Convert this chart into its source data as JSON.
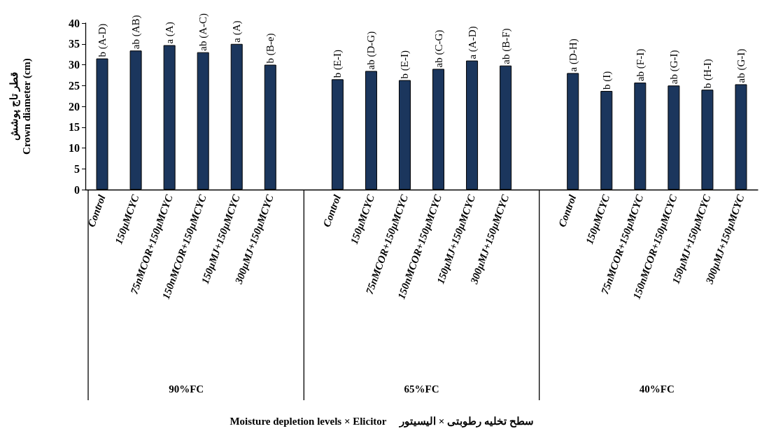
{
  "chart_data": {
    "type": "bar",
    "ylabel": "قطر تاج پوشش\nCrown diameter (cm)",
    "categories": [
      "Control",
      "150µMCYC",
      "75nMCOR+150µMCYC",
      "150nMCOR+150µMCYC",
      "150µMJ+150µMCYC",
      "300µMJ+150µMCYC",
      null,
      "Control",
      "150µMCYC",
      "75nMCOR+150µMCYC",
      "150nMCOR+150µMCYC",
      "150µMJ+150µMCYC",
      "300µMJ+150µMCYC",
      null,
      "Control",
      "150µMCYC",
      "75nMCOR+150µMCYC",
      "150nMCOR+150µMCYC",
      "150µMJ+150µMCYC",
      "300µMJ+150µMCYC"
    ],
    "values": [
      31.5,
      33.4,
      34.7,
      33.0,
      35.0,
      30.0,
      null,
      26.5,
      28.5,
      26.3,
      29.0,
      31.0,
      29.8,
      null,
      28.0,
      23.7,
      25.7,
      25.0,
      24.0,
      25.3
    ],
    "value_labels": [
      "b (A-D)",
      "ab (AB)",
      "a (A)",
      "ab (A-C)",
      "a (A)",
      "b (B-e)",
      null,
      "b (E-I)",
      "ab (D-G)",
      "b (E-I)",
      "ab (C-G)",
      "a (A-D)",
      "ab (B-F)",
      null,
      "a (D-H)",
      "b (I)",
      "ab (F-I)",
      "ab (G-I)",
      "b (H-I)",
      "ab (G-I)"
    ],
    "annotations": [
      "90%FC",
      "65%FC",
      "40%FC",
      "Moisture depletion levels × Elicitor     سطح تخلیه رطوبتی × الیسیتور"
    ],
    "color": "#1b365d",
    "ylim": [
      0,
      40
    ],
    "yticks": [
      0,
      5,
      10,
      15,
      20,
      25,
      30,
      35,
      40
    ],
    "grid": false
  }
}
